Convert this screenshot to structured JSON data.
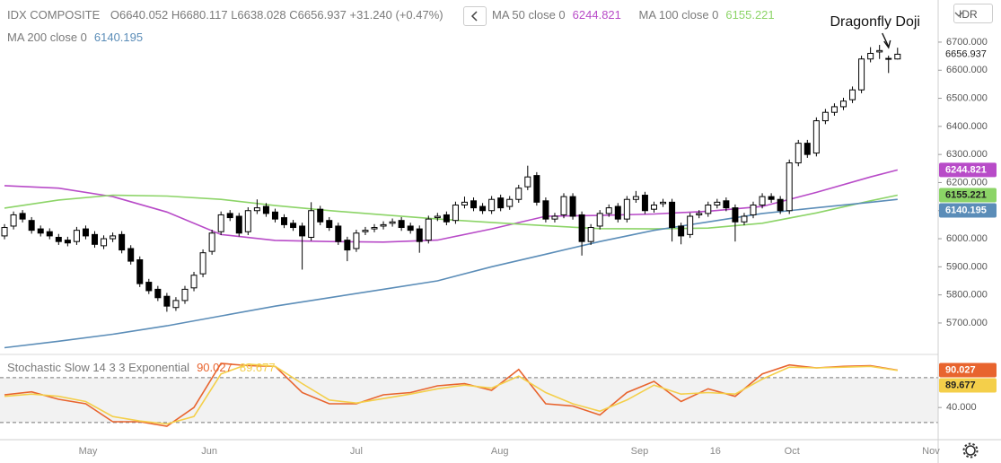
{
  "chart_data": [
    {
      "type": "candlestick",
      "title": "IDX COMPOSITE",
      "ohlc_letters": [
        "O",
        "H",
        "L",
        "C"
      ],
      "change": "+31.240 (+0.47%)",
      "currency": "IDR",
      "open": [
        6010,
        6045,
        6090,
        6065,
        6035,
        6025,
        6005,
        5995,
        5990,
        6035,
        6015,
        5975,
        6000,
        6015,
        5965,
        5925,
        5845,
        5820,
        5795,
        5755,
        5780,
        5825,
        5875,
        5955,
        6025,
        6090,
        6080,
        6025,
        6100,
        6115,
        6095,
        6075,
        6055,
        6045,
        6005,
        6105,
        6065,
        6045,
        5995,
        5965,
        6025,
        6035,
        6045,
        6055,
        6065,
        6045,
        6035,
        5995,
        6075,
        6085,
        6065,
        6120,
        6135,
        6115,
        6100,
        6145,
        6115,
        6140,
        6185,
        6225,
        6135,
        6070,
        6085,
        6150,
        6085,
        5990,
        6045,
        6090,
        6115,
        6070,
        6140,
        6155,
        6105,
        6125,
        6130,
        6045,
        6015,
        6085,
        6090,
        6120,
        6135,
        6110,
        6060,
        6085,
        6120,
        6150,
        6140,
        6100,
        6270,
        6340,
        6305,
        6420,
        6450,
        6470,
        6495,
        6530,
        6640,
        6665,
        6640,
        6640.052
      ],
      "high": [
        6052,
        6097,
        6102,
        6077,
        6047,
        6037,
        6017,
        6007,
        6042,
        6047,
        6027,
        6012,
        6022,
        6027,
        5977,
        5937,
        5857,
        5832,
        5807,
        5792,
        5832,
        5882,
        5962,
        6032,
        6097,
        6102,
        6092,
        6112,
        6140,
        6127,
        6107,
        6087,
        6067,
        6057,
        6130,
        6117,
        6077,
        6057,
        6007,
        6032,
        6042,
        6052,
        6062,
        6072,
        6077,
        6057,
        6047,
        6082,
        6092,
        6097,
        6132,
        6150,
        6147,
        6127,
        6152,
        6157,
        6152,
        6192,
        6260,
        6237,
        6147,
        6092,
        6162,
        6162,
        6097,
        6052,
        6102,
        6122,
        6127,
        6152,
        6170,
        6167,
        6132,
        6142,
        6142,
        6057,
        6092,
        6102,
        6132,
        6142,
        6147,
        6122,
        6092,
        6132,
        6162,
        6162,
        6152,
        6282,
        6352,
        6352,
        6432,
        6462,
        6482,
        6502,
        6542,
        6652,
        6682,
        6690,
        6652,
        6680.117
      ],
      "low": [
        5998,
        6033,
        6058,
        6018,
        6008,
        5998,
        5978,
        5973,
        5978,
        5998,
        5968,
        5963,
        5988,
        5948,
        5908,
        5828,
        5803,
        5778,
        5740,
        5743,
        5768,
        5813,
        5863,
        5943,
        6013,
        6063,
        6008,
        6013,
        6088,
        6078,
        6058,
        6038,
        6028,
        5890,
        5993,
        6048,
        6028,
        5978,
        5920,
        5953,
        6013,
        6023,
        6033,
        6043,
        6028,
        6018,
        5950,
        5983,
        6063,
        6048,
        6053,
        6108,
        6098,
        6088,
        6088,
        6098,
        6103,
        6128,
        6173,
        6118,
        6058,
        6058,
        6073,
        6068,
        5940,
        5978,
        6033,
        6078,
        6058,
        6058,
        6128,
        6088,
        6093,
        6113,
        5990,
        5980,
        6003,
        6073,
        6078,
        6108,
        6098,
        5990,
        6048,
        6073,
        6108,
        6128,
        6088,
        6088,
        6258,
        6288,
        6293,
        6408,
        6438,
        6458,
        6483,
        6518,
        6628,
        6640,
        6590,
        6638.028
      ],
      "close": [
        6040,
        6085,
        6070,
        6030,
        6020,
        6010,
        5990,
        5985,
        6030,
        6010,
        5980,
        6000,
        6010,
        5960,
        5920,
        5840,
        5815,
        5790,
        5760,
        5780,
        5820,
        5870,
        5950,
        6020,
        6085,
        6075,
        6020,
        6100,
        6110,
        6090,
        6070,
        6050,
        6040,
        6010,
        6100,
        6060,
        6040,
        5990,
        5960,
        6020,
        6030,
        6040,
        6050,
        6060,
        6040,
        6030,
        5990,
        6070,
        6080,
        6060,
        6120,
        6130,
        6110,
        6100,
        6140,
        6110,
        6140,
        6180,
        6220,
        6130,
        6070,
        6080,
        6150,
        6080,
        5990,
        6040,
        6090,
        6110,
        6070,
        6140,
        6150,
        6100,
        6120,
        6130,
        6040,
        6010,
        6080,
        6090,
        6120,
        6130,
        6110,
        6060,
        6080,
        6120,
        6150,
        6140,
        6100,
        6270,
        6340,
        6300,
        6420,
        6450,
        6470,
        6490,
        6530,
        6640,
        6660,
        6670,
        6642,
        6656.937
      ],
      "up_color": "#ffffff",
      "down_color": "#000000",
      "xlim": [
        -0.5,
        103.5
      ],
      "xticks": [
        {
          "value": 9.25,
          "label": "May"
        },
        {
          "value": 22.7,
          "label": "Jun"
        },
        {
          "value": 39,
          "label": "Jul"
        },
        {
          "value": 54.9,
          "label": "Aug"
        },
        {
          "value": 70.4,
          "label": "Sep"
        },
        {
          "value": 78.8,
          "label": "16"
        },
        {
          "value": 87.3,
          "label": "Oct"
        },
        {
          "value": 102.7,
          "label": "Nov"
        }
      ],
      "ylim": [
        5588,
        6850
      ],
      "yticks": [
        {
          "value": 5700,
          "label": "5700.000"
        },
        {
          "value": 5800,
          "label": "5800.000"
        },
        {
          "value": 5900,
          "label": "5900.000"
        },
        {
          "value": 6000,
          "label": "6000.000"
        },
        {
          "value": 6100,
          "label": "6100.000"
        },
        {
          "value": 6200,
          "label": "6200.000"
        },
        {
          "value": 6300,
          "label": "6300.000"
        },
        {
          "value": 6400,
          "label": "6400.000"
        },
        {
          "value": 6500,
          "label": "6500.000"
        },
        {
          "value": 6600,
          "label": "6600.000"
        },
        {
          "value": 6700,
          "label": "6700.000"
        }
      ],
      "grid": false,
      "series": [
        {
          "name": "MA 50 close 0",
          "color": "#b84bc8",
          "x": [
            0,
            6,
            12,
            18,
            24,
            30,
            36,
            42,
            48,
            54,
            60,
            66,
            72,
            78,
            84,
            90,
            96,
            99
          ],
          "values": [
            6189,
            6180,
            6150,
            6095,
            6015,
            5994,
            5990,
            5988,
            5995,
            6035,
            6080,
            6083,
            6088,
            6098,
            6115,
            6165,
            6220,
            6244.821
          ]
        },
        {
          "name": "MA 100 close 0",
          "color": "#8cd467",
          "x": [
            0,
            6,
            12,
            18,
            24,
            30,
            36,
            42,
            48,
            54,
            60,
            66,
            72,
            78,
            84,
            90,
            96,
            99
          ],
          "values": [
            6109,
            6138,
            6155,
            6152,
            6140,
            6118,
            6100,
            6085,
            6070,
            6058,
            6046,
            6036,
            6035,
            6038,
            6055,
            6092,
            6135,
            6155.221
          ]
        },
        {
          "name": "MA 200 close 0",
          "color": "#5b8db8",
          "x": [
            0,
            6,
            12,
            18,
            24,
            30,
            36,
            42,
            48,
            54,
            60,
            66,
            72,
            78,
            84,
            90,
            96,
            99
          ],
          "values": [
            5612,
            5635,
            5660,
            5690,
            5725,
            5760,
            5790,
            5820,
            5850,
            5900,
            5945,
            5990,
            6030,
            6060,
            6090,
            6110,
            6130,
            6140.195
          ]
        }
      ],
      "annotation": {
        "text": "Dragonfly Doji",
        "x": 98
      }
    },
    {
      "type": "line",
      "title": "Stochastic Slow 14 3 3 Exponential",
      "ylim": [
        -3,
        111
      ],
      "yticks": [
        {
          "value": 40,
          "label": "40.000"
        }
      ],
      "bands": [
        20,
        80
      ],
      "band_color": "#f2f2f2",
      "series": [
        {
          "color": "#e8642e",
          "x": [
            0,
            3,
            6,
            9,
            12,
            15,
            18,
            21,
            24,
            27,
            30,
            33,
            36,
            39,
            42,
            45,
            48,
            51,
            54,
            57,
            60,
            63,
            66,
            69,
            72,
            75,
            78,
            81,
            84,
            87,
            90,
            93,
            96,
            99
          ],
          "values": [
            57,
            61,
            51,
            45,
            21,
            21,
            15,
            40,
            99,
            96,
            95,
            60,
            45,
            45,
            57,
            60,
            69,
            72,
            63,
            91,
            45,
            42,
            30,
            60,
            75,
            48,
            65,
            55,
            85,
            97,
            93,
            95,
            96,
            90.027
          ]
        },
        {
          "color": "#f4cf4a",
          "x": [
            0,
            3,
            6,
            9,
            12,
            15,
            18,
            21,
            24,
            27,
            30,
            33,
            36,
            39,
            42,
            45,
            48,
            51,
            54,
            57,
            60,
            63,
            66,
            69,
            72,
            75,
            78,
            81,
            84,
            87,
            90,
            93,
            96,
            99
          ],
          "values": [
            55,
            58,
            55,
            48,
            28,
            22,
            18,
            28,
            85,
            98,
            95,
            72,
            50,
            46,
            52,
            58,
            65,
            70,
            66,
            82,
            60,
            45,
            35,
            50,
            70,
            58,
            60,
            58,
            78,
            94,
            93,
            94,
            95,
            89.677
          ]
        }
      ]
    }
  ]
}
